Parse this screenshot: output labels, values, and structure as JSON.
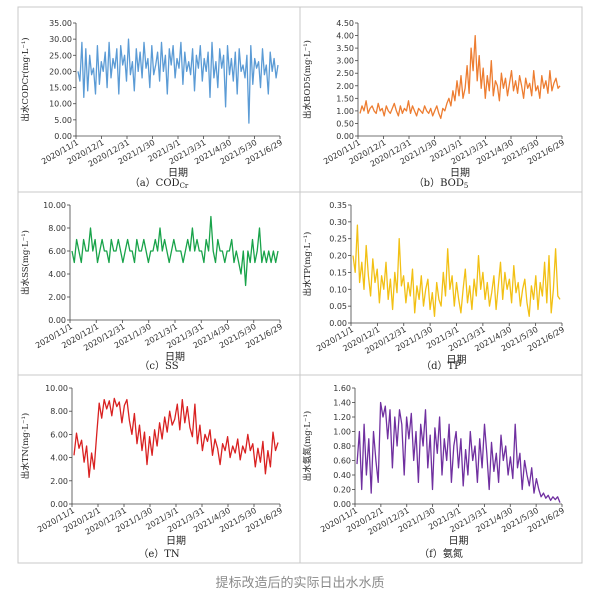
{
  "figure_caption": "提标改造后的实际日出水水质",
  "x_ticks": [
    "2020/11/1",
    "2020/12/1",
    "2020/12/31",
    "2021/1/30",
    "2021/3/1",
    "2021/3/31",
    "2021/4/30",
    "2021/5/30",
    "2021/6/29"
  ],
  "x_axis_label": "日期",
  "chart_data": [
    {
      "type": "line",
      "panel": "a",
      "caption": "（a）COD",
      "caption_sub": "Cr",
      "ylabel": "出水CODCr(mg·L⁻¹)",
      "ylim": [
        0,
        35
      ],
      "yticks": [
        "0.00",
        "5.00",
        "10.00",
        "15.00",
        "20.00",
        "25.00",
        "30.00",
        "35.00"
      ],
      "color": "#5b9bd5",
      "values": [
        20,
        17,
        29,
        12,
        27,
        14,
        25,
        19,
        21,
        13,
        28,
        16,
        23,
        20,
        26,
        15,
        29,
        18,
        24,
        21,
        27,
        13,
        28,
        22,
        25,
        17,
        30,
        19,
        23,
        14,
        27,
        20,
        26,
        18,
        29,
        21,
        24,
        15,
        28,
        19,
        22,
        26,
        17,
        29,
        20,
        25,
        13,
        27,
        22,
        28,
        18,
        24,
        21,
        29,
        16,
        26,
        20,
        23,
        19,
        27,
        14,
        25,
        21,
        28,
        17,
        24,
        20,
        26,
        12,
        29,
        18,
        23,
        15,
        27,
        21,
        25,
        9,
        28,
        19,
        24,
        17,
        26,
        13,
        27,
        20,
        22,
        18,
        25,
        4,
        28,
        16,
        24,
        21,
        23,
        15,
        27,
        19,
        22,
        13,
        26,
        20,
        24,
        18,
        22
      ]
    },
    {
      "type": "line",
      "panel": "b",
      "caption": "（b）BOD",
      "caption_sub": "5",
      "ylabel": "出水BOD5(mg·L⁻¹)",
      "ylim": [
        0,
        4.5
      ],
      "yticks": [
        "0.00",
        "0.50",
        "1.00",
        "1.50",
        "2.00",
        "2.50",
        "3.00",
        "3.50",
        "4.00",
        "4.50"
      ],
      "color": "#ed7d31",
      "values": [
        0.9,
        1.2,
        1.0,
        1.4,
        0.9,
        1.1,
        1.2,
        1.0,
        0.9,
        1.3,
        1.0,
        1.1,
        0.8,
        1.2,
        1.0,
        0.9,
        1.1,
        1.3,
        1.0,
        0.8,
        1.2,
        0.9,
        1.1,
        1.0,
        1.4,
        0.9,
        1.2,
        1.0,
        0.8,
        1.1,
        1.0,
        0.9,
        1.2,
        1.0,
        0.9,
        1.1,
        0.8,
        1.0,
        1.2,
        0.9,
        0.7,
        1.1,
        1.0,
        1.3,
        1.5,
        1.2,
        1.8,
        1.4,
        2.2,
        1.6,
        2.4,
        1.5,
        1.9,
        2.8,
        1.7,
        3.5,
        2.6,
        4.0,
        2.2,
        3.2,
        1.9,
        2.7,
        1.5,
        2.4,
        1.8,
        3.0,
        1.6,
        2.2,
        2.0,
        1.4,
        2.5,
        1.9,
        2.3,
        1.6,
        2.1,
        2.6,
        1.8,
        2.2,
        1.7,
        2.4,
        2.0,
        1.5,
        2.3,
        1.9,
        2.1,
        1.6,
        2.6,
        1.8,
        2.0,
        1.5,
        2.4,
        1.9,
        2.2,
        1.7,
        2.6,
        1.8,
        2.1,
        2.3,
        1.9,
        2.0
      ]
    },
    {
      "type": "line",
      "panel": "c",
      "caption": "（c）SS",
      "ylabel": "出水SS(mg·L⁻¹)",
      "ylim": [
        0,
        10
      ],
      "yticks": [
        "0.00",
        "2.00",
        "4.00",
        "6.00",
        "8.00",
        "10.00"
      ],
      "color": "#19a34a",
      "values": [
        6,
        5,
        7,
        6,
        5,
        7,
        6,
        6,
        8,
        6,
        7,
        5,
        6,
        7,
        6,
        6,
        5,
        7,
        6,
        6,
        7,
        6,
        5,
        6,
        7,
        6,
        6,
        5,
        7,
        6,
        6,
        7,
        6,
        5,
        6,
        6,
        7,
        6,
        8,
        6,
        7,
        6,
        5,
        6,
        7,
        6,
        6,
        6,
        5,
        6,
        7,
        6,
        8,
        6,
        7,
        6,
        6,
        5,
        7,
        6,
        9,
        6,
        5,
        7,
        6,
        6,
        5,
        6,
        6,
        7,
        5,
        6,
        5,
        4,
        6,
        3,
        6,
        5,
        7,
        5,
        6,
        8,
        5,
        6,
        5,
        6,
        5,
        6,
        5,
        6
      ]
    },
    {
      "type": "line",
      "panel": "d",
      "caption": "（d）TP",
      "ylabel": "出水TP(mg·L⁻¹)",
      "ylim": [
        0,
        0.35
      ],
      "yticks": [
        "0.00",
        "0.05",
        "0.10",
        "0.15",
        "0.20",
        "0.25",
        "0.30",
        "0.35"
      ],
      "color": "#f2c014",
      "values": [
        0.2,
        0.15,
        0.29,
        0.12,
        0.18,
        0.1,
        0.23,
        0.14,
        0.08,
        0.19,
        0.12,
        0.16,
        0.06,
        0.14,
        0.1,
        0.18,
        0.07,
        0.13,
        0.04,
        0.15,
        0.09,
        0.25,
        0.11,
        0.14,
        0.06,
        0.12,
        0.08,
        0.16,
        0.03,
        0.11,
        0.07,
        0.14,
        0.05,
        0.1,
        0.13,
        0.04,
        0.09,
        0.02,
        0.12,
        0.07,
        0.05,
        0.15,
        0.08,
        0.22,
        0.1,
        0.14,
        0.05,
        0.12,
        0.07,
        0.03,
        0.1,
        0.16,
        0.06,
        0.11,
        0.04,
        0.13,
        0.08,
        0.2,
        0.1,
        0.15,
        0.07,
        0.12,
        0.05,
        0.09,
        0.14,
        0.04,
        0.11,
        0.18,
        0.07,
        0.15,
        0.1,
        0.13,
        0.06,
        0.17,
        0.09,
        0.12,
        0.05,
        0.1,
        0.13,
        0.06,
        0.02,
        0.11,
        0.07,
        0.14,
        0.04,
        0.12,
        0.08,
        0.18,
        0.06,
        0.2,
        0.03,
        0.1,
        0.22,
        0.08,
        0.07
      ]
    },
    {
      "type": "line",
      "panel": "e",
      "caption": "（e）TN",
      "ylabel": "出水TN(mg·L⁻¹)",
      "ylim": [
        0,
        10
      ],
      "yticks": [
        "0.00",
        "2.00",
        "4.00",
        "6.00",
        "8.00",
        "10.00"
      ],
      "color": "#d92121",
      "values": [
        4.2,
        6.1,
        4.8,
        5.5,
        3.6,
        5.0,
        2.3,
        4.4,
        3.0,
        6.0,
        8.7,
        7.4,
        9.0,
        8.2,
        8.9,
        7.6,
        9.1,
        8.4,
        8.8,
        7.0,
        8.5,
        9.0,
        7.2,
        6.0,
        7.8,
        5.2,
        6.8,
        4.6,
        6.2,
        3.4,
        5.8,
        4.2,
        6.4,
        5.0,
        7.0,
        5.6,
        7.5,
        6.2,
        8.0,
        6.8,
        7.3,
        8.6,
        6.4,
        9.0,
        7.0,
        8.4,
        6.6,
        5.8,
        8.6,
        5.2,
        6.8,
        4.6,
        6.0,
        5.4,
        6.4,
        4.2,
        5.6,
        4.8,
        3.4,
        5.2,
        4.6,
        5.8,
        4.0,
        5.0,
        4.4,
        5.6,
        3.8,
        5.0,
        4.4,
        6.0,
        4.6,
        5.2,
        3.2,
        4.8,
        3.6,
        5.4,
        2.6,
        4.6,
        3.2,
        6.2,
        4.6,
        5.3
      ]
    },
    {
      "type": "line",
      "panel": "f",
      "caption": "（f）氨氮",
      "ylabel": "出水氨氮(mg·L⁻¹)",
      "ylim": [
        0,
        1.6
      ],
      "yticks": [
        "0.00",
        "0.20",
        "0.40",
        "0.60",
        "0.80",
        "1.00",
        "1.20",
        "1.40",
        "1.60"
      ],
      "color": "#7030a0",
      "values": [
        0.55,
        1.0,
        0.2,
        1.1,
        0.4,
        0.9,
        0.15,
        1.0,
        0.6,
        0.3,
        1.4,
        1.2,
        1.35,
        0.9,
        1.3,
        0.5,
        1.2,
        0.8,
        1.3,
        1.1,
        0.4,
        1.2,
        0.9,
        1.25,
        0.6,
        1.0,
        0.3,
        1.1,
        0.8,
        1.3,
        0.5,
        0.95,
        0.2,
        1.05,
        0.7,
        1.2,
        0.4,
        0.9,
        0.6,
        1.1,
        0.3,
        0.8,
        1.0,
        0.5,
        0.9,
        0.25,
        0.75,
        0.4,
        1.0,
        0.6,
        0.8,
        0.3,
        0.9,
        0.5,
        1.1,
        0.7,
        0.2,
        0.85,
        0.45,
        0.7,
        0.3,
        0.95,
        0.6,
        0.8,
        0.4,
        0.65,
        0.35,
        1.1,
        0.5,
        0.7,
        0.2,
        0.6,
        0.4,
        0.25,
        0.5,
        0.15,
        0.35,
        0.2,
        0.1,
        0.15,
        0.08,
        0.12,
        0.05,
        0.1,
        0.06,
        0.1,
        0.02
      ]
    }
  ]
}
